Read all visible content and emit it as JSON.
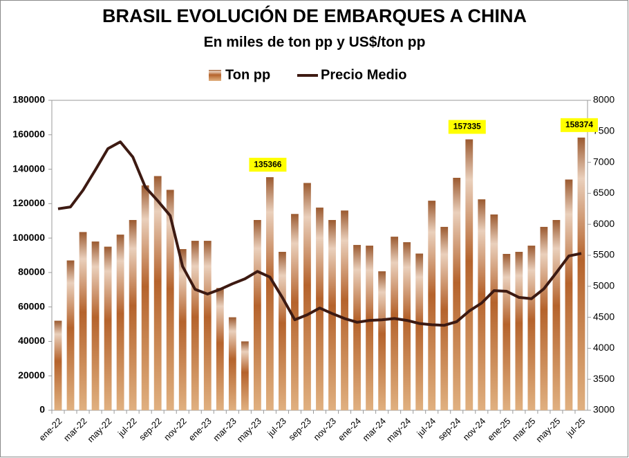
{
  "chart_data": {
    "type": "bar-line",
    "title": "BRASIL EVOLUCIÓN DE EMBARQUES A CHINA",
    "subtitle": "En miles de ton pp y US$/ton pp",
    "categories": [
      "ene-22",
      null,
      "mar-22",
      null,
      "may-22",
      null,
      "jul-22",
      null,
      "sep-22",
      null,
      "nov-22",
      null,
      "ene-23",
      null,
      "mar-23",
      null,
      "may-23",
      null,
      "jul-23",
      null,
      "sep-23",
      null,
      "nov-23",
      null,
      "ene-24",
      null,
      "mar-24",
      null,
      "may-24",
      null,
      "jul-24",
      null,
      "sep-24",
      null,
      "nov-24",
      null,
      "ene-25",
      null,
      "mar-25",
      null,
      "may-25",
      null,
      "jul-25"
    ],
    "series": [
      {
        "name": "Ton pp",
        "type": "bar",
        "color": "#b5632c",
        "values": [
          52000,
          87000,
          103500,
          98000,
          95000,
          102000,
          110500,
          130600,
          136000,
          128000,
          93600,
          98400,
          98400,
          71000,
          54000,
          40000,
          110500,
          135366,
          92000,
          114000,
          132000,
          117700,
          110500,
          116000,
          96000,
          95600,
          80700,
          100800,
          97600,
          91000,
          121700,
          106500,
          135000,
          157335,
          122500,
          113700,
          90800,
          92000,
          95600,
          106500,
          110500,
          134000,
          158374
        ],
        "value_labels": [
          null,
          null,
          null,
          null,
          null,
          null,
          null,
          null,
          null,
          null,
          null,
          null,
          null,
          null,
          null,
          null,
          null,
          "135366",
          null,
          null,
          null,
          null,
          null,
          null,
          null,
          null,
          null,
          null,
          null,
          null,
          null,
          null,
          null,
          "157335",
          null,
          null,
          null,
          null,
          null,
          null,
          null,
          null,
          "158374"
        ]
      },
      {
        "name": "Precio Medio",
        "type": "line",
        "axis": "y2",
        "color": "#3d1a12",
        "values": [
          6250,
          6280,
          6550,
          6880,
          7220,
          7330,
          7085,
          6600,
          6380,
          6140,
          5320,
          4950,
          4875,
          4950,
          5040,
          5120,
          5240,
          5150,
          4820,
          4460,
          4540,
          4650,
          4560,
          4480,
          4420,
          4450,
          4460,
          4480,
          4450,
          4400,
          4380,
          4370,
          4430,
          4600,
          4730,
          4930,
          4920,
          4820,
          4800,
          4960,
          5220,
          5490,
          5530
        ]
      }
    ],
    "ylim": [
      0,
      180000
    ],
    "yticks": [
      0,
      20000,
      40000,
      60000,
      80000,
      100000,
      120000,
      140000,
      160000,
      180000
    ],
    "y2lim": [
      3000,
      8000
    ],
    "y2ticks": [
      3000,
      3500,
      4000,
      4500,
      5000,
      5500,
      6000,
      6500,
      7000,
      7500,
      8000
    ],
    "legend": "top"
  }
}
